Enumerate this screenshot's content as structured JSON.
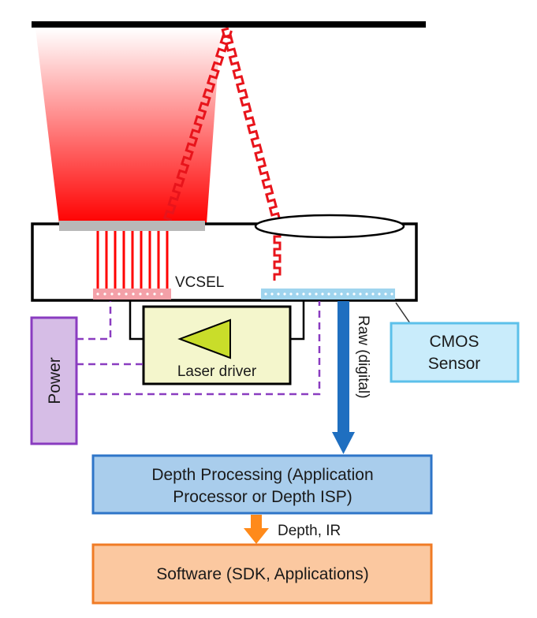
{
  "labels": {
    "vcsel": "VCSEL",
    "cmos_sensor_line1": "CMOS",
    "cmos_sensor_line2": "Sensor",
    "laser_driver": "Laser driver",
    "power": "Power",
    "raw_digital": "Raw (digital)",
    "depth_processing_line1": "Depth Processing (Application",
    "depth_processing_line2": "Processor or Depth ISP)",
    "depth_ir": "Depth, IR",
    "software": "Software (SDK, Applications)"
  },
  "colors": {
    "beam_red": "#ff0000",
    "laser_signal_red": "#e8141b",
    "vcsel_pad": "#f4a0a8",
    "sensor_pixels": "#9fd4ee",
    "cmos_box_fill": "#c9ecfb",
    "cmos_box_border": "#5cc0ea",
    "laser_driver_fill": "#f4f6cc",
    "triangle_fill": "#c9dd2a",
    "power_fill": "#d6bde6",
    "power_border": "#8a3cc0",
    "dashed_wire": "#8a3cc0",
    "raw_arrow": "#1f6fc0",
    "depth_box_fill": "#a9cdec",
    "depth_box_border": "#2e75c8",
    "depth_ir_arrow": "#ff8a1a",
    "software_fill": "#fbc8a0",
    "software_border": "#f07b25",
    "target_bar": "#000000",
    "window_gray": "#b8b8b8"
  }
}
